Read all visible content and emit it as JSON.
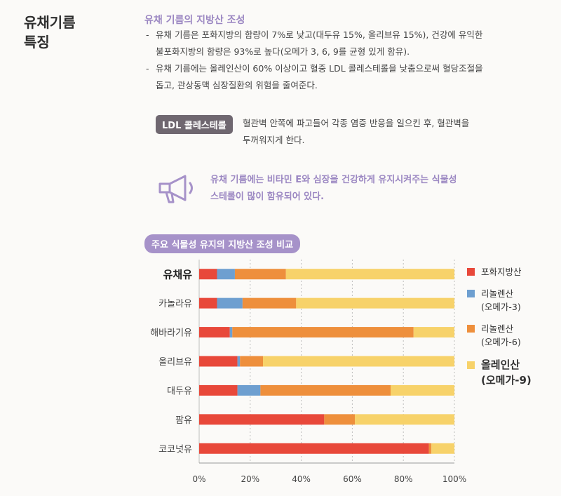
{
  "side_title": [
    "유채기름",
    "특징"
  ],
  "section_title": "유채 기름의 지방산 조성",
  "bullets": [
    [
      "유채 기름은 포화지방의 함량이 7%로 낮고(대두유 15%, 올리브유 15%), 건강에 유익한",
      "불포화지방의 함량은 93%로 높다(오메가 3, 6, 9를 균형 있게 함유)."
    ],
    [
      "유채 기름에는 올레인산이 60% 이상이고 혈중 LDL 콜레스테롤을 낮춤으로써 혈당조절을",
      "돕고, 관상동맥 심장질환의 위험을 줄여준다."
    ]
  ],
  "ldl": {
    "badge": "LDL 콜레스테롤",
    "lines": [
      "혈관벽 안쪽에 파고들어 각종 염증 반응을 일으킨 후, 혈관벽을",
      "두꺼워지게 한다."
    ]
  },
  "note": {
    "icon": "megaphone-icon",
    "lines": [
      "유채 기름에는 비타민 E와 심장을 건강하게 유지시켜주는 식물성",
      "스테롤이 많이 함유되어 있다."
    ]
  },
  "chart_data": {
    "type": "bar",
    "orientation": "horizontal",
    "stacked": true,
    "title": "주요 식물성 유지의 지방산 조성 비교",
    "categories": [
      "유채유",
      "카놀라유",
      "해바라기유",
      "올리브유",
      "대두유",
      "팜유",
      "코코넛유"
    ],
    "highlight_category": "유채유",
    "series": [
      {
        "name": "포화지방산",
        "color": "#e8483a",
        "values": [
          7,
          7,
          12,
          15,
          15,
          49,
          90
        ]
      },
      {
        "name": "리놀렌산 (오메가-3)",
        "color": "#6e9fd0",
        "values": [
          7,
          10,
          1,
          1,
          9,
          0,
          0
        ]
      },
      {
        "name": "리놀렌산 (오메가-6)",
        "color": "#ee8f3c",
        "values": [
          20,
          21,
          71,
          9,
          51,
          12,
          1
        ]
      },
      {
        "name": "올레인산 (오메가-9)",
        "color": "#f7d26a",
        "values": [
          66,
          62,
          16,
          75,
          25,
          39,
          9
        ]
      }
    ],
    "xlim": [
      0,
      100
    ],
    "xticks": [
      "0%",
      "20%",
      "40%",
      "60%",
      "80%",
      "100%"
    ],
    "grid": "vertical-dotted",
    "legend_position": "right"
  },
  "legend": [
    {
      "lines": [
        "포화지방산"
      ],
      "big": false
    },
    {
      "lines": [
        "리놀렌산",
        "(오메가-3)"
      ],
      "big": false
    },
    {
      "lines": [
        "리놀렌산",
        "(오메가-6)"
      ],
      "big": false
    },
    {
      "lines": [
        "올레인산",
        "(오메가-9)"
      ],
      "big": true
    }
  ]
}
